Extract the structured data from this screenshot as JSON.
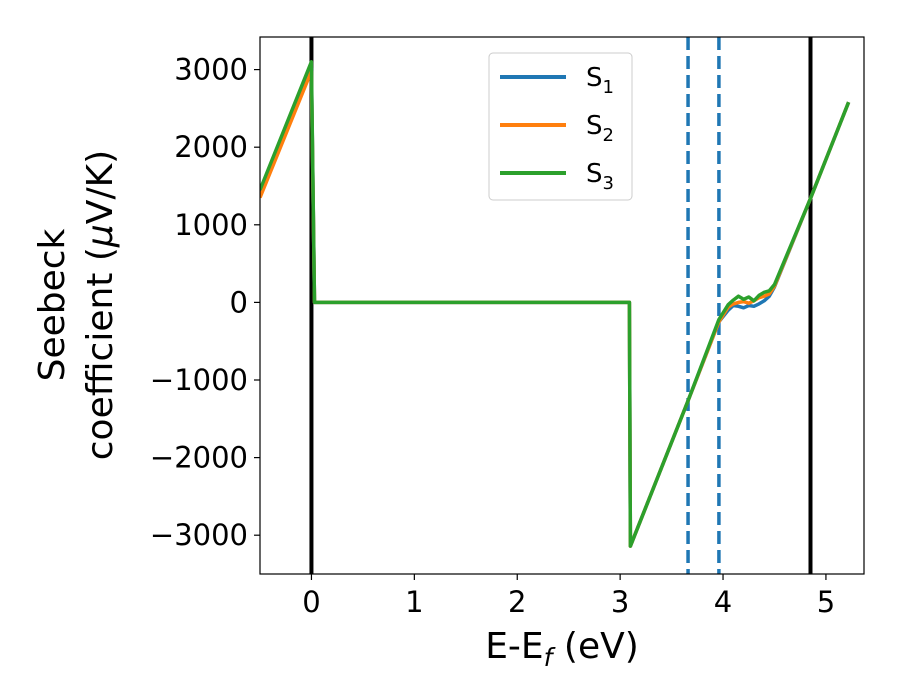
{
  "chart_data": {
    "type": "line",
    "xlabel": "E-E",
    "xlabel_sub": "f",
    "xlabel_unit": " (eV)",
    "ylabel_line1": "Seebeck",
    "ylabel_line2": "coefficient  (",
    "ylabel_mu": "μ",
    "ylabel_unit": "V/K)",
    "xlim": [
      -0.5,
      5.37
    ],
    "ylim": [
      -3500,
      3420
    ],
    "xticks": [
      0,
      1,
      2,
      3,
      4,
      5
    ],
    "xtick_labels": [
      "0",
      "1",
      "2",
      "3",
      "4",
      "5"
    ],
    "yticks": [
      -3000,
      -2000,
      -1000,
      0,
      1000,
      2000,
      3000
    ],
    "ytick_labels": [
      "−3000",
      "−2000",
      "−1000",
      "0",
      "1000",
      "2000",
      "3000"
    ],
    "grid": false,
    "legend_position": "top-center",
    "vlines": [
      {
        "x": 0.0,
        "style": "solid",
        "color": "#000000"
      },
      {
        "x": 4.85,
        "style": "solid",
        "color": "#000000"
      },
      {
        "x": 3.66,
        "style": "dashed",
        "color": "#1f77b4"
      },
      {
        "x": 3.96,
        "style": "dashed",
        "color": "#1f77b4"
      }
    ],
    "series": [
      {
        "name": "S",
        "sub": "1",
        "color": "#1f77b4",
        "x": [
          -0.5,
          0.0,
          0.03,
          3.09,
          3.1,
          3.66,
          3.96,
          4.05,
          4.1,
          4.15,
          4.2,
          4.25,
          4.3,
          4.35,
          4.4,
          4.45,
          4.5,
          4.85,
          5.22
        ],
        "y": [
          1400,
          3020,
          0,
          0,
          -3140,
          -1270,
          -250,
          -100,
          -40,
          -50,
          -70,
          -40,
          -50,
          -20,
          20,
          80,
          200,
          1340,
          2580
        ]
      },
      {
        "name": "S",
        "sub": "2",
        "color": "#ff7f0e",
        "x": [
          -0.5,
          0.0,
          0.03,
          3.09,
          3.1,
          3.66,
          3.96,
          4.05,
          4.1,
          4.15,
          4.2,
          4.25,
          4.3,
          4.35,
          4.4,
          4.45,
          4.5,
          4.85,
          5.22
        ],
        "y": [
          1350,
          2980,
          0,
          0,
          -3140,
          -1270,
          -250,
          -60,
          -20,
          0,
          10,
          -10,
          20,
          60,
          80,
          110,
          210,
          1340,
          2580
        ]
      },
      {
        "name": "S",
        "sub": "3",
        "color": "#2ca02c",
        "x": [
          -0.5,
          0.0,
          0.03,
          3.09,
          3.1,
          3.66,
          3.96,
          4.05,
          4.1,
          4.15,
          4.2,
          4.25,
          4.3,
          4.35,
          4.4,
          4.45,
          4.5,
          4.85,
          5.22
        ],
        "y": [
          1450,
          3100,
          0,
          0,
          -3140,
          -1270,
          -220,
          -30,
          30,
          80,
          40,
          70,
          20,
          90,
          130,
          150,
          230,
          1340,
          2580
        ]
      }
    ]
  }
}
